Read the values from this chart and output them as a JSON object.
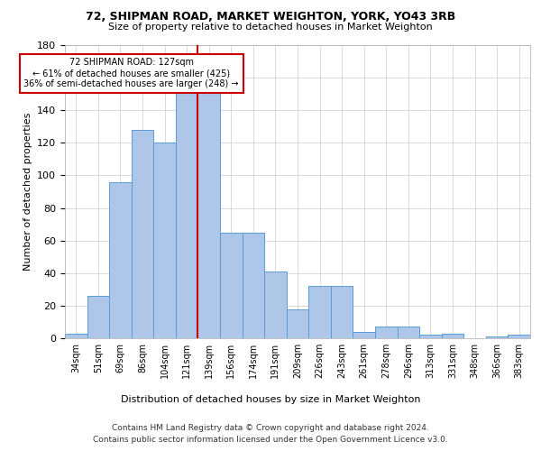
{
  "title1": "72, SHIPMAN ROAD, MARKET WEIGHTON, YORK, YO43 3RB",
  "title2": "Size of property relative to detached houses in Market Weighton",
  "xlabel": "Distribution of detached houses by size in Market Weighton",
  "ylabel": "Number of detached properties",
  "bar_labels": [
    "34sqm",
    "51sqm",
    "69sqm",
    "86sqm",
    "104sqm",
    "121sqm",
    "139sqm",
    "156sqm",
    "174sqm",
    "191sqm",
    "209sqm",
    "226sqm",
    "243sqm",
    "261sqm",
    "278sqm",
    "296sqm",
    "313sqm",
    "331sqm",
    "348sqm",
    "366sqm",
    "383sqm"
  ],
  "bar_values": [
    3,
    26,
    96,
    128,
    120,
    152,
    152,
    65,
    65,
    41,
    18,
    32,
    32,
    4,
    7,
    7,
    2,
    3,
    0,
    1,
    2
  ],
  "bar_color": "#aec6e8",
  "bar_edge_color": "#5b9bd5",
  "property_line_x": 5.5,
  "annotation_text": "72 SHIPMAN ROAD: 127sqm\n← 61% of detached houses are smaller (425)\n36% of semi-detached houses are larger (248) →",
  "annotation_box_color": "#ffffff",
  "annotation_box_edge": "#cc0000",
  "vline_color": "#cc0000",
  "ylim": [
    0,
    180
  ],
  "yticks": [
    0,
    20,
    40,
    60,
    80,
    100,
    120,
    140,
    160,
    180
  ],
  "footer1": "Contains HM Land Registry data © Crown copyright and database right 2024.",
  "footer2": "Contains public sector information licensed under the Open Government Licence v3.0.",
  "bg_color": "#ffffff",
  "grid_color": "#cccccc"
}
